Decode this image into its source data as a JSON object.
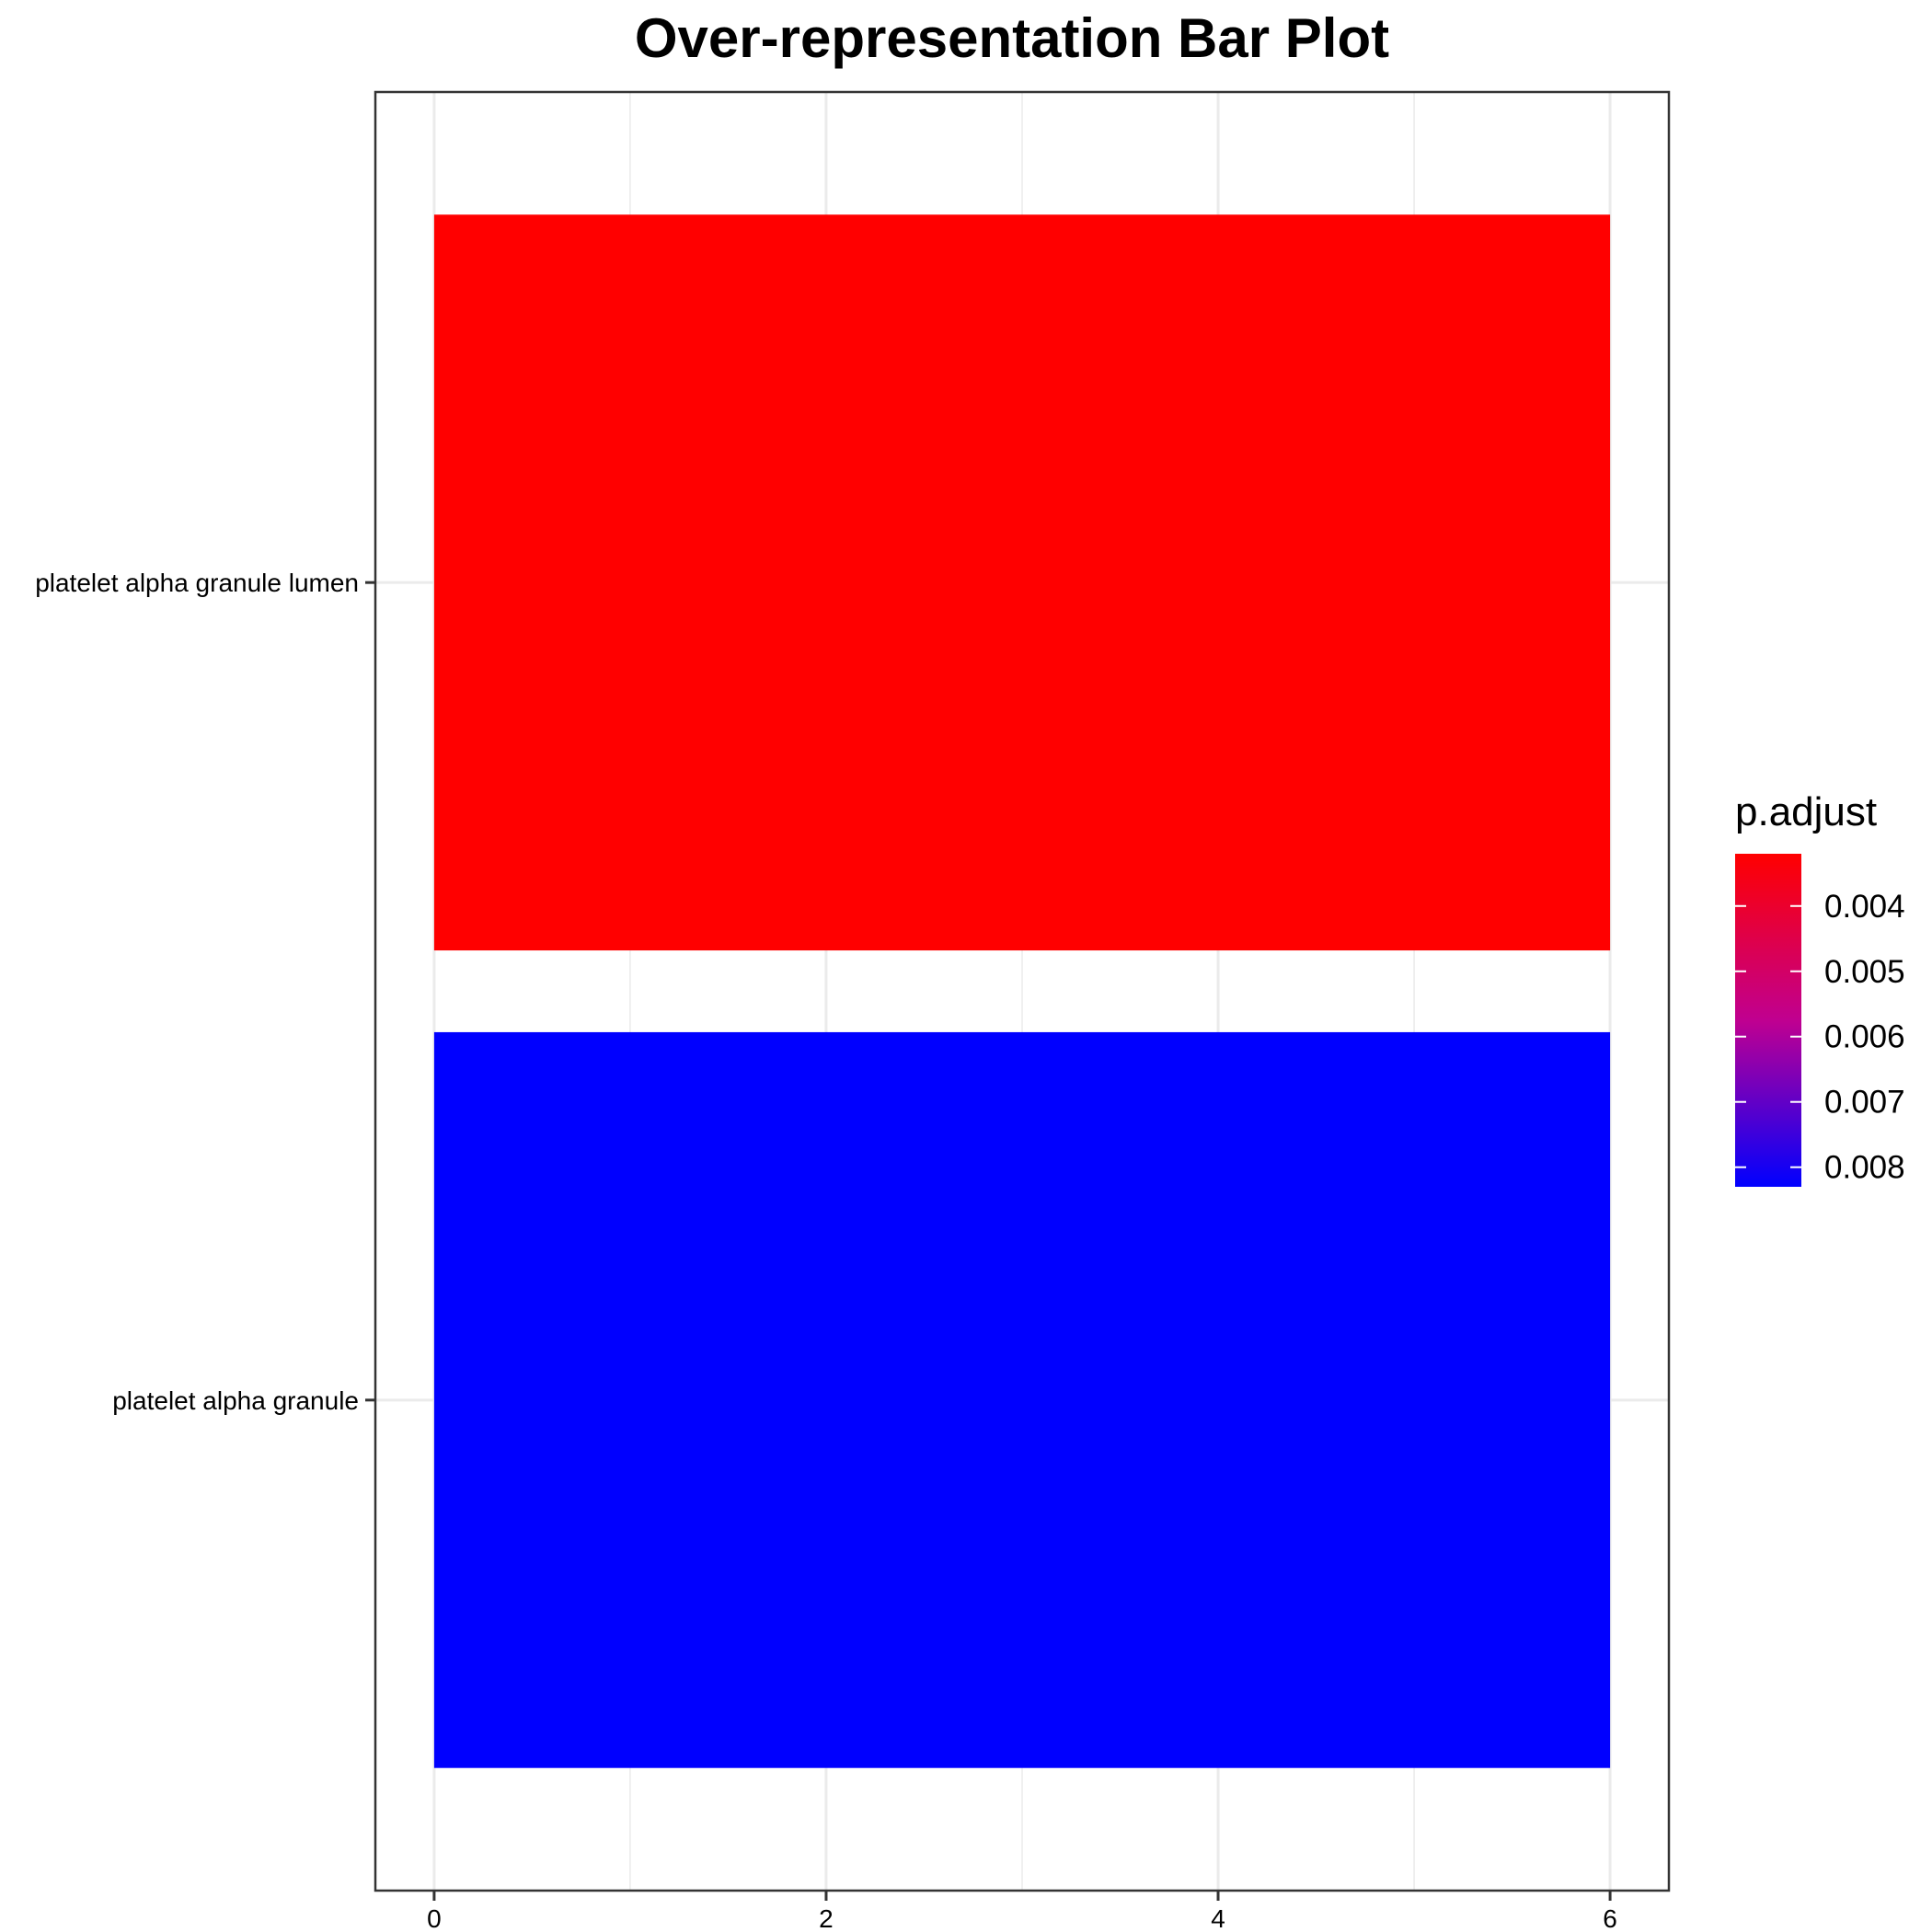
{
  "chart_data": {
    "type": "bar",
    "orientation": "horizontal",
    "title": "Over-representation Bar Plot",
    "xlabel": "",
    "ylabel": "",
    "xlim": [
      -0.3,
      6.3
    ],
    "x_ticks": [
      "0",
      "2",
      "4",
      "6"
    ],
    "categories": [
      "platelet alpha granule lumen",
      "platelet alpha granule"
    ],
    "values": [
      6,
      6
    ],
    "p_adjust": [
      0.0032,
      0.0083
    ],
    "bar_colors": [
      "#FF0000",
      "#0000FF"
    ],
    "grid": true,
    "legend": {
      "title": "p.adjust",
      "placement": "right",
      "labels": [
        "0.004",
        "0.005",
        "0.006",
        "0.007",
        "0.008"
      ],
      "min": 0.0032,
      "max": 0.0083,
      "color_low": "#FF0000",
      "color_high": "#0000FF"
    }
  }
}
